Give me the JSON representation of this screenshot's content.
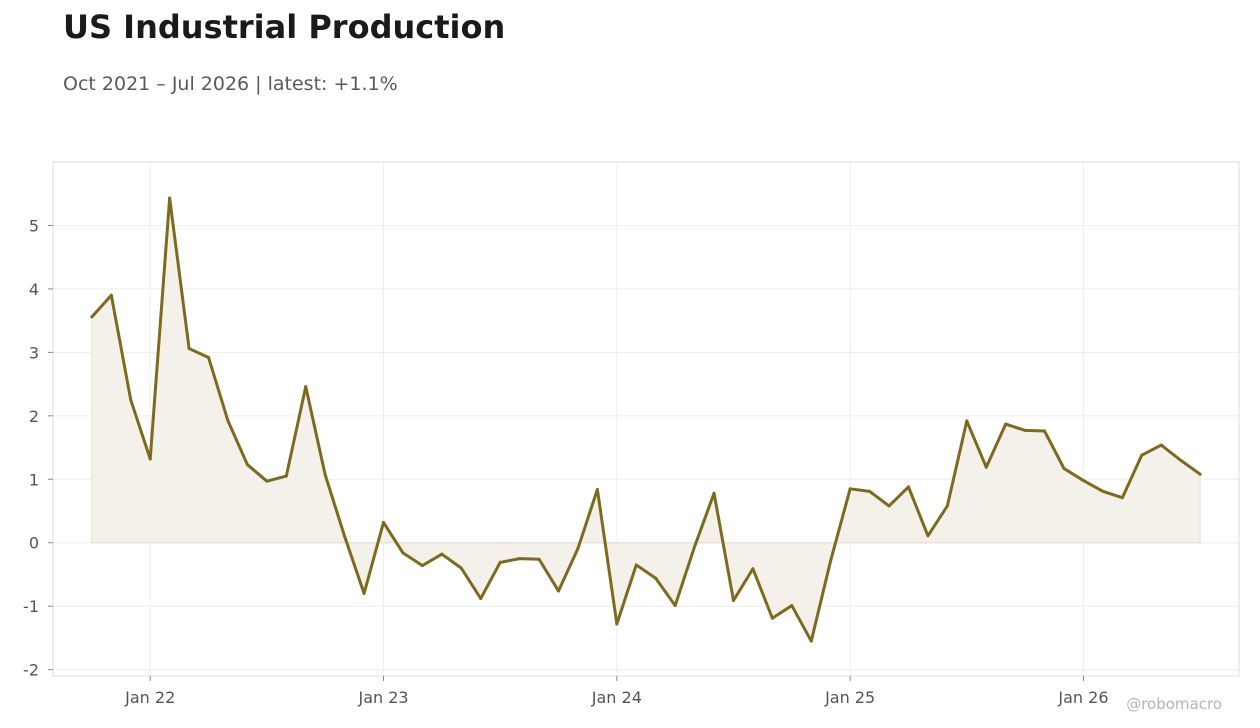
{
  "header": {
    "title": "US Industrial Production",
    "subtitle": "Oct 2021 – Jul 2026 | latest: +1.1%"
  },
  "watermark": "@robomacro",
  "chart_data": {
    "type": "area",
    "title": "US Industrial Production",
    "subtitle": "Oct 2021 – Jul 2026 | latest: +1.1%",
    "xlabel": "",
    "ylabel": "",
    "ylim": [
      -2.1,
      6.0
    ],
    "xlim": [
      "2021-08-01",
      "2026-09-01"
    ],
    "grid": true,
    "line_color": "#7d6a1e",
    "fill_color": "#f3f1ea",
    "x_ticks": [
      {
        "date": "2022-01-01",
        "label": "Jan 22"
      },
      {
        "date": "2023-01-01",
        "label": "Jan 23"
      },
      {
        "date": "2024-01-01",
        "label": "Jan 24"
      },
      {
        "date": "2025-01-01",
        "label": "Jan 25"
      },
      {
        "date": "2026-01-01",
        "label": "Jan 26"
      }
    ],
    "y_ticks": [
      -2,
      -1,
      0,
      1,
      2,
      3,
      4,
      5
    ],
    "x": [
      "2021-10",
      "2021-11",
      "2021-12",
      "2022-01",
      "2022-02",
      "2022-03",
      "2022-04",
      "2022-05",
      "2022-06",
      "2022-07",
      "2022-08",
      "2022-09",
      "2022-10",
      "2022-11",
      "2022-12",
      "2023-01",
      "2023-02",
      "2023-03",
      "2023-04",
      "2023-05",
      "2023-06",
      "2023-07",
      "2023-08",
      "2023-09",
      "2023-10",
      "2023-11",
      "2023-12",
      "2024-01",
      "2024-02",
      "2024-03",
      "2024-04",
      "2024-05",
      "2024-06",
      "2024-07",
      "2024-08",
      "2024-09",
      "2024-10",
      "2024-11",
      "2024-12",
      "2025-01",
      "2025-02",
      "2025-03",
      "2025-04",
      "2025-05",
      "2025-06",
      "2025-07",
      "2025-08",
      "2025-09",
      "2025-10",
      "2025-11",
      "2025-12",
      "2026-01",
      "2026-02",
      "2026-03",
      "2026-04",
      "2026-05",
      "2026-06",
      "2026-07"
    ],
    "values": [
      3.56,
      3.9,
      2.25,
      1.32,
      5.43,
      3.06,
      2.92,
      1.92,
      1.23,
      0.97,
      1.05,
      2.46,
      1.07,
      0.1,
      -0.8,
      0.32,
      -0.16,
      -0.36,
      -0.18,
      -0.4,
      -0.88,
      -0.31,
      -0.25,
      -0.26,
      -0.76,
      -0.09,
      0.84,
      -1.28,
      -0.35,
      -0.56,
      -0.99,
      -0.06,
      0.78,
      -0.91,
      -0.41,
      -1.19,
      -0.99,
      -1.55,
      -0.28,
      0.85,
      0.81,
      0.58,
      0.88,
      0.11,
      0.58,
      1.92,
      1.19,
      1.87,
      1.77,
      1.76,
      1.17,
      0.98,
      0.81,
      0.71,
      1.38,
      1.54,
      1.3,
      1.08
    ]
  }
}
